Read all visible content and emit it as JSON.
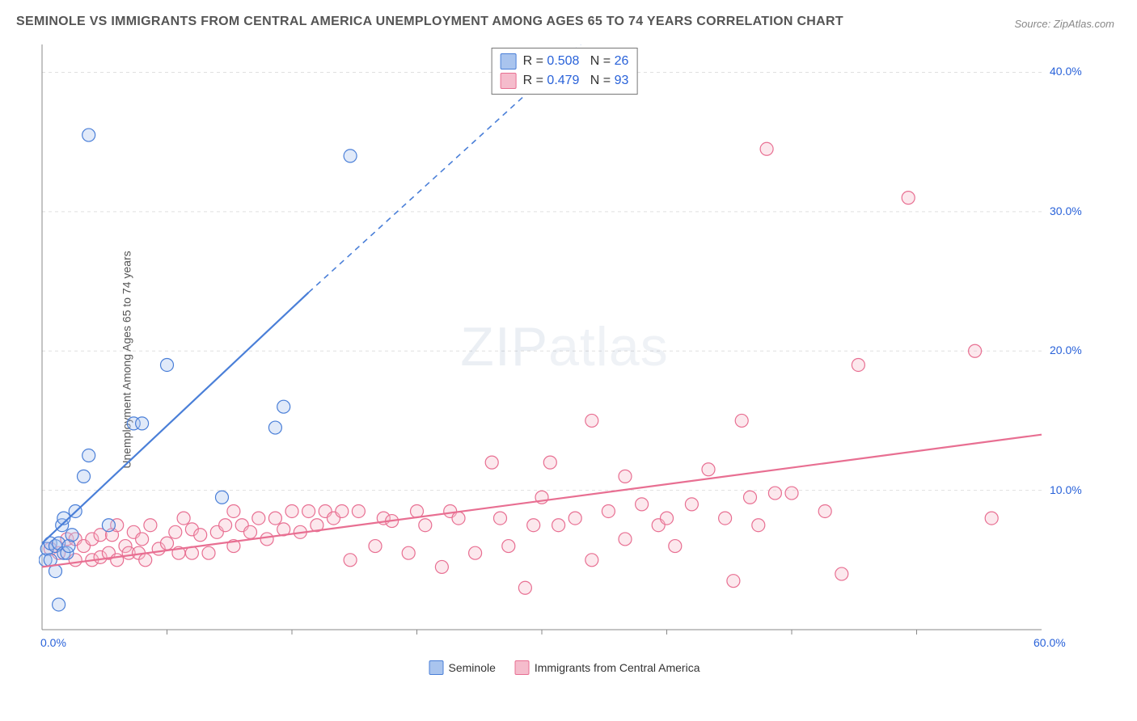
{
  "title": "SEMINOLE VS IMMIGRANTS FROM CENTRAL AMERICA UNEMPLOYMENT AMONG AGES 65 TO 74 YEARS CORRELATION CHART",
  "source": "Source: ZipAtlas.com",
  "y_axis_label": "Unemployment Among Ages 65 to 74 years",
  "watermark": {
    "bold": "ZIP",
    "thin": "atlas"
  },
  "chart": {
    "type": "scatter",
    "xlim": [
      0,
      60
    ],
    "ylim": [
      0,
      42
    ],
    "x_ticks": [
      0,
      60
    ],
    "x_tick_labels": [
      "0.0%",
      "60.0%"
    ],
    "x_minor_ticks": [
      7.5,
      15,
      22.5,
      30,
      37.5,
      45,
      52.5
    ],
    "y_ticks": [
      10,
      20,
      30,
      40
    ],
    "y_tick_labels": [
      "10.0%",
      "20.0%",
      "30.0%",
      "40.0%"
    ],
    "background_color": "#ffffff",
    "grid_color": "#e0e0e0",
    "axis_color": "#888888",
    "marker_radius": 8,
    "marker_stroke_width": 1.2,
    "marker_fill_opacity": 0.35,
    "line_width": 2.2,
    "series": [
      {
        "name": "Seminole",
        "color": "#4a7fd8",
        "fill": "#a9c4ee",
        "R": "0.508",
        "N": "26",
        "trend": {
          "x1": 0,
          "y1": 6.2,
          "x2": 16,
          "y2": 24.2,
          "dash_x2": 36,
          "dash_y2": 46
        },
        "points": [
          [
            0.2,
            5.0
          ],
          [
            0.3,
            5.8
          ],
          [
            0.5,
            6.2
          ],
          [
            0.5,
            5.0
          ],
          [
            0.8,
            4.2
          ],
          [
            0.8,
            6.0
          ],
          [
            1.0,
            1.8
          ],
          [
            1.0,
            6.2
          ],
          [
            1.2,
            7.5
          ],
          [
            1.3,
            5.5
          ],
          [
            1.3,
            8.0
          ],
          [
            1.5,
            5.5
          ],
          [
            1.6,
            6.0
          ],
          [
            1.8,
            6.8
          ],
          [
            2.0,
            8.5
          ],
          [
            2.5,
            11.0
          ],
          [
            2.8,
            12.5
          ],
          [
            2.8,
            35.5
          ],
          [
            4.0,
            7.5
          ],
          [
            5.5,
            14.8
          ],
          [
            6.0,
            14.8
          ],
          [
            7.5,
            19.0
          ],
          [
            10.8,
            9.5
          ],
          [
            14.0,
            14.5
          ],
          [
            14.5,
            16.0
          ],
          [
            18.5,
            34.0
          ]
        ]
      },
      {
        "name": "Immigrants from Central America",
        "color": "#e86f92",
        "fill": "#f5bccc",
        "R": "0.479",
        "N": "93",
        "trend": {
          "x1": 0,
          "y1": 4.5,
          "x2": 60,
          "y2": 14.0
        },
        "points": [
          [
            0.5,
            5.8
          ],
          [
            1.0,
            5.5
          ],
          [
            1.5,
            6.5
          ],
          [
            2.0,
            5.0
          ],
          [
            2.0,
            6.5
          ],
          [
            2.5,
            6.0
          ],
          [
            3.0,
            5.0
          ],
          [
            3.0,
            6.5
          ],
          [
            3.5,
            5.2
          ],
          [
            3.5,
            6.8
          ],
          [
            4.0,
            5.5
          ],
          [
            4.2,
            6.8
          ],
          [
            4.5,
            7.5
          ],
          [
            4.5,
            5.0
          ],
          [
            5.0,
            6.0
          ],
          [
            5.2,
            5.5
          ],
          [
            5.5,
            7.0
          ],
          [
            5.8,
            5.5
          ],
          [
            6.0,
            6.5
          ],
          [
            6.2,
            5.0
          ],
          [
            6.5,
            7.5
          ],
          [
            7.0,
            5.8
          ],
          [
            7.5,
            6.2
          ],
          [
            8.0,
            7.0
          ],
          [
            8.2,
            5.5
          ],
          [
            8.5,
            8.0
          ],
          [
            9.0,
            5.5
          ],
          [
            9.0,
            7.2
          ],
          [
            9.5,
            6.8
          ],
          [
            10.0,
            5.5
          ],
          [
            10.5,
            7.0
          ],
          [
            11.0,
            7.5
          ],
          [
            11.5,
            6.0
          ],
          [
            11.5,
            8.5
          ],
          [
            12.0,
            7.5
          ],
          [
            12.5,
            7.0
          ],
          [
            13.0,
            8.0
          ],
          [
            13.5,
            6.5
          ],
          [
            14.0,
            8.0
          ],
          [
            14.5,
            7.2
          ],
          [
            15.0,
            8.5
          ],
          [
            15.5,
            7.0
          ],
          [
            16.0,
            8.5
          ],
          [
            16.5,
            7.5
          ],
          [
            17.0,
            8.5
          ],
          [
            17.5,
            8.0
          ],
          [
            18.0,
            8.5
          ],
          [
            18.5,
            5.0
          ],
          [
            19.0,
            8.5
          ],
          [
            20.0,
            6.0
          ],
          [
            20.5,
            8.0
          ],
          [
            21.0,
            7.8
          ],
          [
            22.0,
            5.5
          ],
          [
            22.5,
            8.5
          ],
          [
            23.0,
            7.5
          ],
          [
            24.0,
            4.5
          ],
          [
            24.5,
            8.5
          ],
          [
            25.0,
            8.0
          ],
          [
            26.0,
            5.5
          ],
          [
            27.0,
            12.0
          ],
          [
            27.5,
            8.0
          ],
          [
            28.0,
            6.0
          ],
          [
            29.0,
            3.0
          ],
          [
            29.5,
            7.5
          ],
          [
            30.0,
            9.5
          ],
          [
            30.5,
            12.0
          ],
          [
            31.0,
            7.5
          ],
          [
            32.0,
            8.0
          ],
          [
            33.0,
            5.0
          ],
          [
            33.0,
            15.0
          ],
          [
            34.0,
            8.5
          ],
          [
            35.0,
            6.5
          ],
          [
            35.0,
            11.0
          ],
          [
            36.0,
            9.0
          ],
          [
            37.0,
            7.5
          ],
          [
            37.5,
            8.0
          ],
          [
            38.0,
            6.0
          ],
          [
            39.0,
            9.0
          ],
          [
            40.0,
            11.5
          ],
          [
            41.0,
            8.0
          ],
          [
            41.5,
            3.5
          ],
          [
            42.0,
            15.0
          ],
          [
            42.5,
            9.5
          ],
          [
            43.0,
            7.5
          ],
          [
            43.5,
            34.5
          ],
          [
            44.0,
            9.8
          ],
          [
            45.0,
            9.8
          ],
          [
            47.0,
            8.5
          ],
          [
            48.0,
            4.0
          ],
          [
            49.0,
            19.0
          ],
          [
            52.0,
            31.0
          ],
          [
            56.0,
            20.0
          ],
          [
            57.0,
            8.0
          ]
        ]
      }
    ]
  },
  "legend_bottom": [
    {
      "label": "Seminole",
      "fill": "#a9c4ee",
      "stroke": "#4a7fd8"
    },
    {
      "label": "Immigrants from Central America",
      "fill": "#f5bccc",
      "stroke": "#e86f92"
    }
  ]
}
